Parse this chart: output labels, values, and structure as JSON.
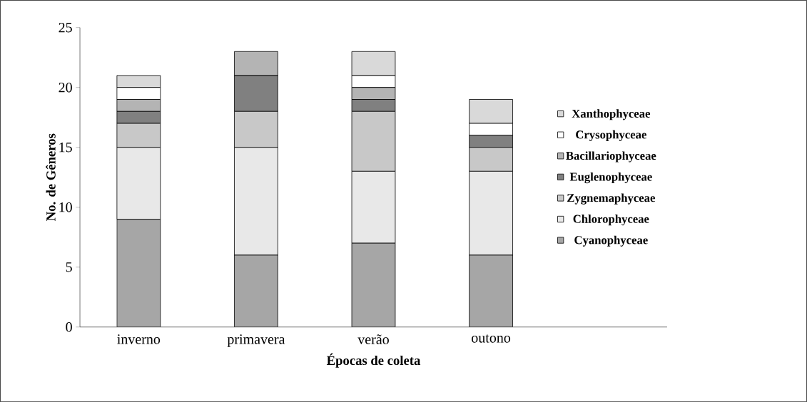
{
  "chart_data": {
    "type": "bar",
    "stacked": true,
    "xlabel": "Épocas de coleta",
    "ylabel": "No. de Gêneros",
    "categories": [
      "inverno",
      "primavera",
      "verão",
      "outono"
    ],
    "series": [
      {
        "name": "Cyanophyceae",
        "color": "#a6a6a6",
        "values": [
          9,
          6,
          7,
          6
        ]
      },
      {
        "name": "Chlorophyceae",
        "color": "#e8e8e8",
        "values": [
          6,
          9,
          6,
          7
        ]
      },
      {
        "name": "Zygnemaphyceae",
        "color": "#c8c8c8",
        "values": [
          2,
          3,
          5,
          2
        ]
      },
      {
        "name": "Euglenophyceae",
        "color": "#808080",
        "values": [
          1,
          3,
          1,
          1
        ]
      },
      {
        "name": "Bacillariophyceae",
        "color": "#b4b4b4",
        "values": [
          1,
          2,
          1,
          0
        ]
      },
      {
        "name": "Crysophyceae",
        "color": "#ffffff",
        "values": [
          1,
          0,
          1,
          1
        ]
      },
      {
        "name": "Xanthophyceae",
        "color": "#d9d9d9",
        "values": [
          1,
          0,
          2,
          2
        ]
      }
    ],
    "ylim": [
      0,
      25
    ],
    "yticks": [
      0,
      5,
      10,
      15,
      20,
      25
    ],
    "legend": "right",
    "grid": false
  }
}
